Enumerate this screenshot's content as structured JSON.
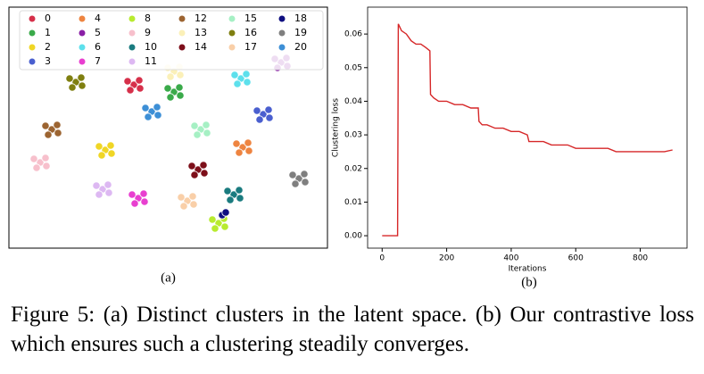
{
  "chart_data": [
    {
      "type": "scatter",
      "panel_label": "(a)",
      "xlim": [
        10,
        367
      ],
      "ylim": [
        278,
        8
      ],
      "legend": "top",
      "series": [
        {
          "name": "0",
          "color": "#d6304a",
          "x": [
            150,
            143,
            157,
            146,
            156
          ],
          "values": [
            95,
            91,
            99,
            101,
            90
          ]
        },
        {
          "name": "1",
          "color": "#3aaa4a",
          "x": [
            195,
            188,
            202,
            191,
            201
          ],
          "values": [
            103,
            99,
            107,
            109,
            98
          ]
        },
        {
          "name": "2",
          "color": "#f0d625",
          "x": [
            118,
            111,
            125,
            114,
            124
          ],
          "values": [
            168,
            164,
            172,
            174,
            163
          ]
        },
        {
          "name": "3",
          "color": "#4a5fcf",
          "x": [
            295,
            288,
            302,
            291,
            301
          ],
          "values": [
            128,
            124,
            132,
            134,
            123
          ]
        },
        {
          "name": "4",
          "color": "#ee8440",
          "x": [
            272,
            265,
            279,
            268,
            278
          ],
          "values": [
            165,
            161,
            169,
            171,
            160
          ]
        },
        {
          "name": "5",
          "color": "#8a1fa6",
          "x": [
            315,
            308,
            322,
            311,
            321
          ],
          "values": [
            70,
            66,
            74,
            76,
            65
          ]
        },
        {
          "name": "6",
          "color": "#5de0ec",
          "x": [
            270,
            263,
            277,
            266,
            276
          ],
          "values": [
            88,
            84,
            92,
            94,
            83
          ]
        },
        {
          "name": "7",
          "color": "#e83fd0",
          "x": [
            155,
            148,
            162,
            151,
            161
          ],
          "values": [
            222,
            218,
            226,
            228,
            217
          ]
        },
        {
          "name": "8",
          "color": "#b8eb2f",
          "x": [
            245,
            238,
            252,
            241,
            251
          ],
          "values": [
            250,
            246,
            254,
            256,
            245
          ]
        },
        {
          "name": "9",
          "color": "#f7c0cc",
          "x": [
            45,
            38,
            52,
            41,
            51
          ],
          "values": [
            182,
            178,
            186,
            188,
            177
          ]
        },
        {
          "name": "10",
          "color": "#1a7b7f",
          "x": [
            262,
            255,
            269,
            258,
            268
          ],
          "values": [
            218,
            214,
            222,
            224,
            213
          ]
        },
        {
          "name": "11",
          "color": "#ddb8f2",
          "x": [
            115,
            108,
            122,
            111,
            121
          ],
          "values": [
            212,
            208,
            216,
            218,
            207
          ]
        },
        {
          "name": "12",
          "color": "#9c6431",
          "x": [
            58,
            51,
            65,
            54,
            64
          ],
          "values": [
            145,
            141,
            149,
            151,
            140
          ]
        },
        {
          "name": "13",
          "color": "#fbf0b8",
          "x": [
            195,
            188,
            202,
            191,
            201
          ],
          "values": [
            80,
            76,
            84,
            86,
            75
          ]
        },
        {
          "name": "14",
          "color": "#7d0f1a",
          "x": [
            222,
            215,
            229,
            218,
            228
          ],
          "values": [
            190,
            186,
            194,
            196,
            185
          ]
        },
        {
          "name": "15",
          "color": "#a6f0c4",
          "x": [
            225,
            218,
            232,
            221,
            231
          ],
          "values": [
            145,
            141,
            149,
            151,
            140
          ]
        },
        {
          "name": "16",
          "color": "#7f7f10",
          "x": [
            85,
            78,
            92,
            81,
            91
          ],
          "values": [
            92,
            88,
            96,
            98,
            87
          ]
        },
        {
          "name": "17",
          "color": "#f9cfa8",
          "x": [
            210,
            203,
            217,
            206,
            216
          ],
          "values": [
            225,
            221,
            229,
            231,
            220
          ]
        },
        {
          "name": "18",
          "color": "#0f0f80",
          "x": [
            249,
            253
          ],
          "values": [
            241,
            238
          ]
        },
        {
          "name": "19",
          "color": "#7f7f7f",
          "x": [
            335,
            328,
            342,
            331,
            341
          ],
          "values": [
            200,
            196,
            204,
            206,
            195
          ]
        },
        {
          "name": "20",
          "color": "#3d8fd6",
          "x": [
            170,
            163,
            177,
            166,
            176
          ],
          "values": [
            125,
            121,
            129,
            131,
            120
          ]
        }
      ]
    },
    {
      "type": "line",
      "panel_label": "(b)",
      "xlabel": "Iterations",
      "ylabel": "Clustering loss",
      "color": "#d62728",
      "x": [
        0,
        25,
        48,
        50,
        60,
        75,
        90,
        105,
        120,
        135,
        148,
        150,
        160,
        175,
        200,
        225,
        250,
        275,
        298,
        300,
        310,
        325,
        350,
        375,
        400,
        425,
        450,
        455,
        475,
        500,
        525,
        550,
        575,
        600,
        625,
        650,
        675,
        700,
        725,
        750,
        775,
        800,
        825,
        850,
        875,
        900
      ],
      "values": [
        0,
        0,
        0,
        0.063,
        0.061,
        0.06,
        0.058,
        0.057,
        0.057,
        0.056,
        0.055,
        0.042,
        0.041,
        0.04,
        0.04,
        0.039,
        0.039,
        0.038,
        0.038,
        0.034,
        0.033,
        0.033,
        0.032,
        0.032,
        0.031,
        0.031,
        0.03,
        0.028,
        0.028,
        0.028,
        0.027,
        0.027,
        0.027,
        0.026,
        0.026,
        0.026,
        0.026,
        0.026,
        0.025,
        0.025,
        0.025,
        0.025,
        0.025,
        0.025,
        0.025,
        0.0255
      ],
      "xlim": [
        -45,
        945
      ],
      "ylim": [
        -0.0037,
        0.068
      ],
      "xticks": [
        0,
        200,
        400,
        600,
        800
      ],
      "yticks": [
        {
          "value": 0,
          "label": "0.00"
        },
        {
          "value": 0.01,
          "label": "0.01"
        },
        {
          "value": 0.02,
          "label": "0.02"
        },
        {
          "value": 0.03,
          "label": "0.03"
        },
        {
          "value": 0.04,
          "label": "0.04"
        },
        {
          "value": 0.05,
          "label": "0.05"
        },
        {
          "value": 0.06,
          "label": "0.06"
        }
      ]
    }
  ],
  "caption": "Figure 5: (a) Distinct clusters in the latent space. (b) Our contrastive loss which ensures such a clustering steadily converges."
}
